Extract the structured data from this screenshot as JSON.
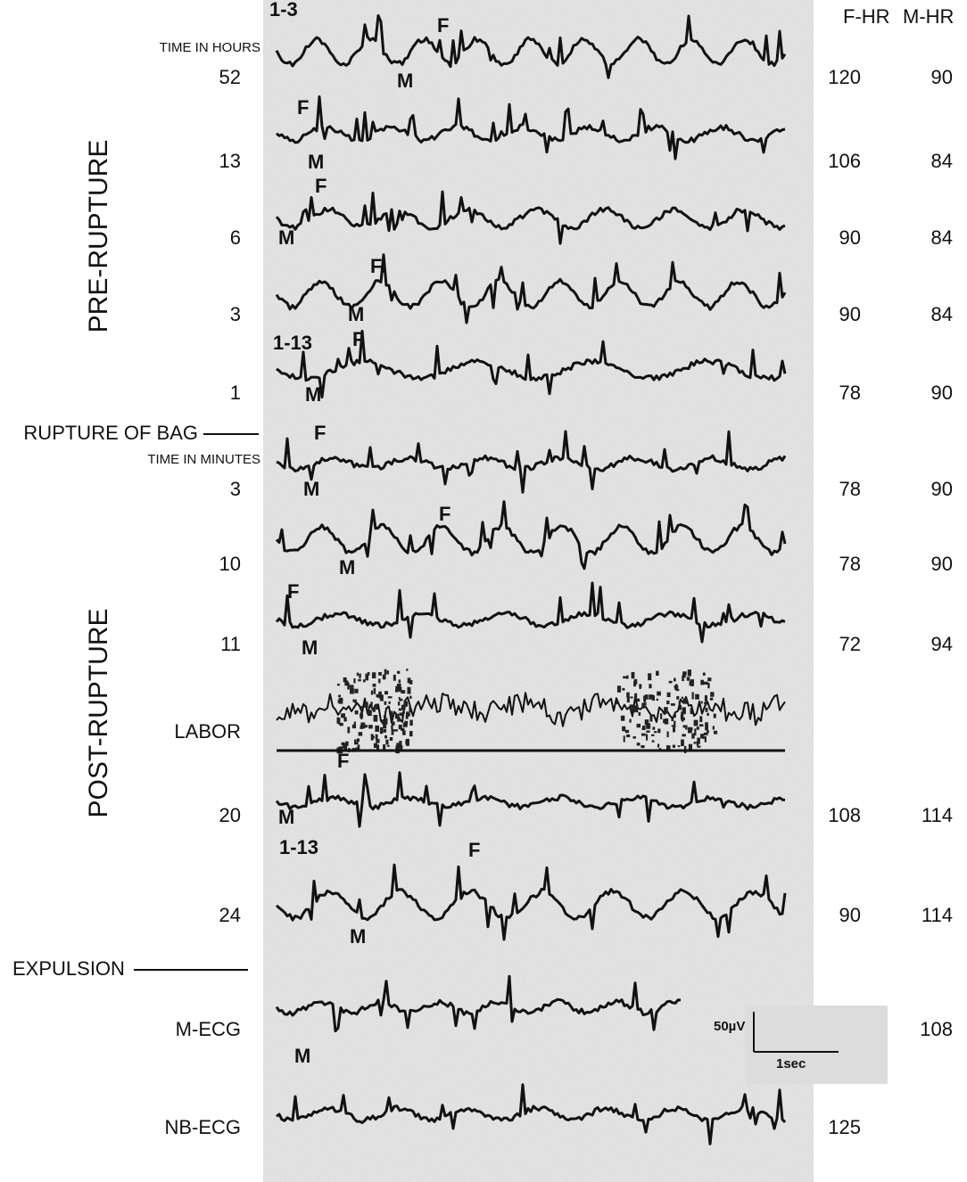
{
  "header": {
    "f_hr": "F-HR",
    "m_hr": "M-HR"
  },
  "side_labels": {
    "pre": "PRE-RUPTURE",
    "post": "POST-RUPTURE",
    "time_hours": "TIME IN HOURS",
    "rupture": "RUPTURE OF BAG",
    "time_minutes": "TIME IN MINUTES",
    "expulsion": "EXPULSION"
  },
  "scale": {
    "amplitude": "50µV",
    "time": "1sec"
  },
  "rows": [
    {
      "label": "52",
      "tag": "1-3",
      "f": "F",
      "m": "M",
      "f_hr": "120",
      "m_hr": "90"
    },
    {
      "label": "13",
      "f": "F",
      "m": "M",
      "f_hr": "106",
      "m_hr": "84"
    },
    {
      "label": "6",
      "f": "F",
      "m": "M",
      "f_hr": "90",
      "m_hr": "84"
    },
    {
      "label": "3",
      "f": "F.",
      "m": "M",
      "f_hr": "90",
      "m_hr": "84"
    },
    {
      "label": "1",
      "tag": "1-13",
      "f": "F",
      "m": "M",
      "f_hr": "78",
      "m_hr": "90"
    },
    {
      "label": "3",
      "f": "F",
      "m": "M",
      "f_hr": "78",
      "m_hr": "90"
    },
    {
      "label": "10",
      "f": "F",
      "m": "M",
      "f_hr": "78",
      "m_hr": "90"
    },
    {
      "label": "11",
      "f": "F",
      "m": "M",
      "f_hr": "72",
      "m_hr": "94"
    },
    {
      "label": "LABOR"
    },
    {
      "label": "20",
      "f": "F",
      "m": "M",
      "f_hr": "108",
      "m_hr": "114"
    },
    {
      "label": "24",
      "tag": "1-13",
      "f": "F",
      "m": "M",
      "f_hr": "90",
      "m_hr": "114"
    },
    {
      "label": "M-ECG",
      "m": "M",
      "m_hr": "108"
    },
    {
      "label": "NB-ECG",
      "f_hr": "125"
    }
  ]
}
